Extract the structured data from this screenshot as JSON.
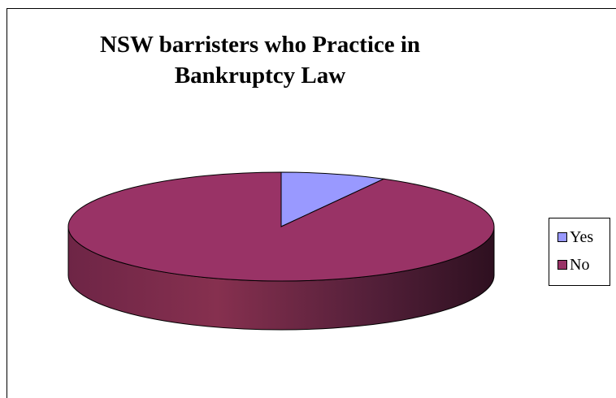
{
  "chart_data": {
    "type": "pie",
    "title_lines": [
      "NSW barristers who Practice in",
      "Bankruptcy Law"
    ],
    "slices": [
      {
        "label": "Yes",
        "value": 8,
        "color": "#9999FF"
      },
      {
        "label": "No",
        "value": 92,
        "color": "#993366"
      }
    ],
    "style": "3d",
    "legend_position": "right"
  }
}
